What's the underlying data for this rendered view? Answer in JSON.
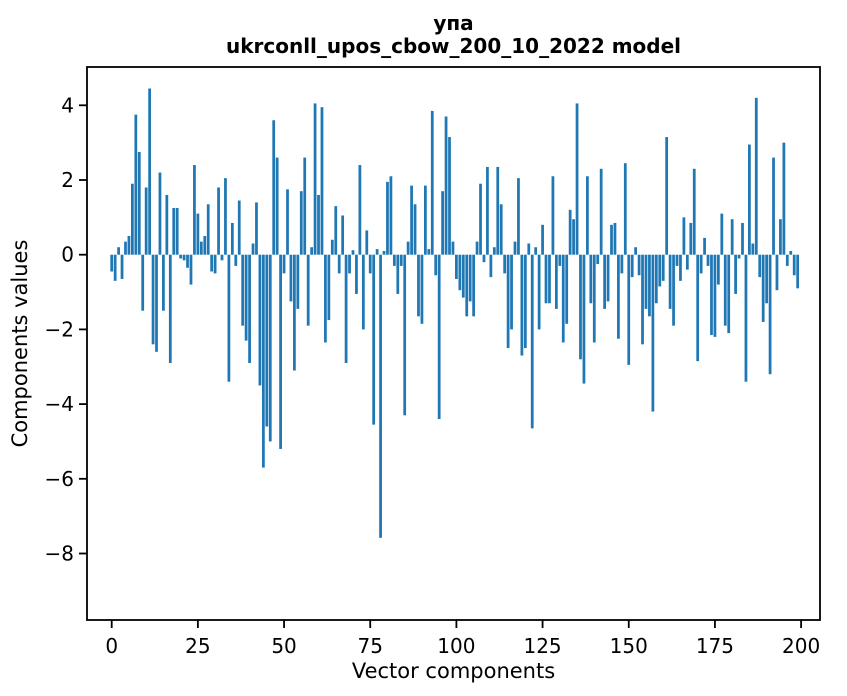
{
  "figure": {
    "kind": "matplotlib-bar-figure",
    "background": "#ffffff"
  },
  "chart_data": {
    "type": "bar",
    "title_line1": "упа",
    "title_line2": "ukrconll_upos_cbow_200_10_2022 model",
    "xlabel": "Vector components",
    "ylabel": "Components values",
    "x_ticks": [
      0,
      25,
      50,
      75,
      100,
      125,
      150,
      175,
      200
    ],
    "y_ticks": [
      4,
      2,
      0,
      -2,
      -4,
      -6,
      -8
    ],
    "xlim": [
      -7.2,
      205.5
    ],
    "ylim": [
      -9.8,
      5.0
    ],
    "grid": false,
    "legend": "none",
    "bar_color": "#1f77b4",
    "axis_color": "#000000",
    "n_components": 200,
    "values": [
      -0.45,
      -0.7,
      0.2,
      -0.65,
      0.35,
      0.5,
      1.9,
      3.75,
      2.75,
      -1.5,
      1.8,
      4.45,
      -2.4,
      -2.6,
      2.2,
      -1.5,
      1.6,
      -2.9,
      1.25,
      1.25,
      -0.1,
      -0.15,
      -0.35,
      -0.8,
      2.4,
      1.1,
      0.35,
      0.5,
      1.35,
      -0.45,
      -0.5,
      1.8,
      -0.15,
      2.05,
      -3.4,
      0.85,
      -0.3,
      1.45,
      -1.9,
      -2.3,
      -2.9,
      0.3,
      1.4,
      -3.5,
      -5.7,
      -4.6,
      -5.0,
      3.6,
      2.6,
      -5.2,
      -0.5,
      1.75,
      -1.25,
      -3.1,
      -1.45,
      1.7,
      2.6,
      -1.9,
      0.2,
      4.05,
      1.6,
      3.95,
      -2.35,
      -1.75,
      0.4,
      1.3,
      -0.5,
      1.05,
      -2.9,
      -0.5,
      0.12,
      -1.05,
      2.4,
      -2.0,
      0.65,
      -0.5,
      -4.55,
      0.15,
      -7.58,
      0.1,
      1.95,
      2.1,
      -0.3,
      -1.05,
      -0.3,
      -4.3,
      0.35,
      1.85,
      1.35,
      -1.65,
      -1.85,
      1.85,
      0.15,
      3.85,
      -0.55,
      -4.4,
      1.7,
      3.7,
      3.15,
      0.35,
      -0.65,
      -0.95,
      -1.15,
      -1.65,
      -1.25,
      -1.65,
      0.35,
      1.9,
      -0.2,
      2.35,
      -0.6,
      0.2,
      2.35,
      1.35,
      -0.5,
      -2.5,
      -2.0,
      0.35,
      2.05,
      -2.7,
      -2.5,
      0.3,
      -4.65,
      0.2,
      -2.0,
      0.8,
      -1.3,
      -1.3,
      2.1,
      -1.45,
      -0.3,
      -2.35,
      -1.85,
      1.2,
      0.95,
      4.05,
      -2.8,
      -3.45,
      2.1,
      -1.3,
      -2.35,
      -0.25,
      2.3,
      -1.45,
      -1.25,
      0.8,
      0.85,
      -2.25,
      -0.5,
      2.45,
      -2.95,
      -0.6,
      0.2,
      -0.55,
      -2.4,
      -1.45,
      -1.65,
      -4.2,
      -1.3,
      -0.85,
      -0.7,
      3.15,
      -1.45,
      -1.9,
      -0.3,
      -0.7,
      1.0,
      -0.4,
      0.85,
      2.3,
      -2.85,
      -0.5,
      0.45,
      -0.3,
      -2.15,
      -2.2,
      -0.8,
      1.1,
      -1.9,
      -2.1,
      0.95,
      -1.05,
      -0.1,
      0.85,
      -3.4,
      2.95,
      0.3,
      4.2,
      -0.6,
      -1.8,
      -1.3,
      -3.2,
      2.6,
      -0.95,
      0.95,
      3.0,
      -0.3,
      0.1,
      -0.55,
      -0.9
    ]
  }
}
